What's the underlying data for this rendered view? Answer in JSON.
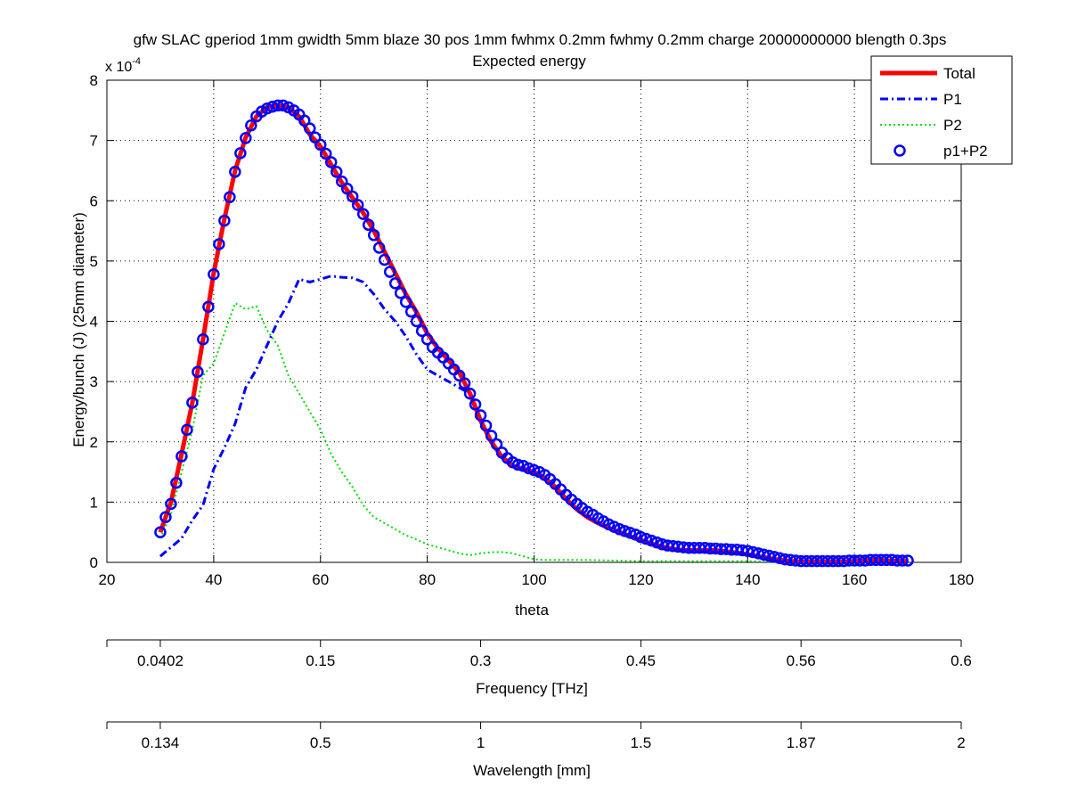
{
  "chart_data": {
    "type": "line",
    "title": "gfw SLAC gperiod 1mm gwidth 5mm blaze 30 pos 1mm fwhmx 0.2mm fwhmy 0.2mm charge 20000000000 blength 0.3ps",
    "subtitle": "Expected energy",
    "xlabel": "theta",
    "ylabel": "Energy/bunch (J) (25mm diameter)",
    "y_exponent_label": "x 10",
    "y_exponent_power": "-4",
    "xlim": [
      20,
      180
    ],
    "ylim": [
      0,
      8
    ],
    "x_ticks": [
      "20",
      "40",
      "60",
      "80",
      "100",
      "120",
      "140",
      "160",
      "180"
    ],
    "y_ticks": [
      "0",
      "1",
      "2",
      "3",
      "4",
      "5",
      "6",
      "7",
      "8"
    ],
    "grid": true,
    "legend_position": "top-right",
    "series": [
      {
        "name": "Total",
        "color": "#ff0000",
        "style": "solid",
        "x": [
          30,
          32,
          34,
          36,
          38,
          40,
          42,
          44,
          46,
          48,
          50,
          52,
          54,
          56,
          58,
          60,
          62,
          64,
          66,
          68,
          70,
          72,
          74,
          76,
          78,
          80,
          82,
          84,
          86,
          88,
          90,
          92,
          94,
          96,
          98,
          100,
          102,
          104,
          106,
          108,
          110,
          112,
          114,
          116,
          118,
          120,
          122,
          124,
          126,
          128,
          130,
          132,
          134,
          136,
          138,
          140,
          142,
          144,
          146,
          148,
          150,
          152,
          154,
          156,
          158,
          160,
          162,
          164,
          166,
          168,
          170
        ],
        "values": [
          0.5,
          1.0,
          1.8,
          2.65,
          3.7,
          4.8,
          5.7,
          6.5,
          7.05,
          7.4,
          7.55,
          7.58,
          7.55,
          7.4,
          7.1,
          6.9,
          6.6,
          6.3,
          6.05,
          5.8,
          5.5,
          5.15,
          4.8,
          4.45,
          4.15,
          3.8,
          3.55,
          3.35,
          3.15,
          2.8,
          2.35,
          2.0,
          1.75,
          1.6,
          1.55,
          1.5,
          1.4,
          1.25,
          1.05,
          0.88,
          0.75,
          0.65,
          0.57,
          0.5,
          0.43,
          0.37,
          0.31,
          0.26,
          0.22,
          0.2,
          0.2,
          0.2,
          0.2,
          0.18,
          0.16,
          0.13,
          0.1,
          0.07,
          0.04,
          0.02,
          0.01,
          0.01,
          0.01,
          0.01,
          0.01,
          0.02,
          0.03,
          0.04,
          0.03,
          0.02,
          0.02
        ]
      },
      {
        "name": "P1",
        "color": "#0000ff",
        "style": "dashdot",
        "x": [
          30,
          32,
          34,
          36,
          38,
          40,
          42,
          44,
          46,
          48,
          50,
          52,
          54,
          56,
          58,
          60,
          62,
          64,
          66,
          68,
          70,
          72,
          74,
          76,
          78,
          80,
          82,
          84,
          86,
          88,
          90,
          92,
          94,
          96,
          98,
          100,
          102,
          104,
          106,
          108,
          110,
          112,
          114,
          116,
          118,
          120,
          122,
          124,
          126,
          128,
          130,
          132,
          134,
          136,
          138,
          140,
          142,
          144,
          146,
          148,
          150,
          152,
          154,
          156,
          158,
          160,
          162,
          164,
          166,
          168,
          170
        ],
        "values": [
          0.1,
          0.25,
          0.4,
          0.7,
          0.95,
          1.55,
          1.9,
          2.3,
          2.9,
          3.2,
          3.6,
          4.0,
          4.3,
          4.7,
          4.65,
          4.7,
          4.75,
          4.73,
          4.72,
          4.65,
          4.45,
          4.2,
          4.0,
          3.75,
          3.45,
          3.2,
          3.1,
          3.0,
          2.9,
          2.8,
          2.35,
          2.0,
          1.75,
          1.6,
          1.55,
          1.5,
          1.4,
          1.25,
          1.05,
          0.88,
          0.75,
          0.65,
          0.57,
          0.5,
          0.43,
          0.37,
          0.31,
          0.26,
          0.22,
          0.2,
          0.2,
          0.2,
          0.2,
          0.18,
          0.16,
          0.13,
          0.1,
          0.07,
          0.04,
          0.02,
          0.01,
          0.01,
          0.01,
          0.01,
          0.01,
          0.02,
          0.03,
          0.04,
          0.03,
          0.02,
          0.02
        ]
      },
      {
        "name": "P2",
        "color": "#00dd00",
        "style": "dotted",
        "x": [
          30,
          32,
          34,
          36,
          38,
          40,
          42,
          44,
          46,
          48,
          50,
          52,
          54,
          56,
          58,
          60,
          62,
          64,
          66,
          68,
          70,
          72,
          74,
          76,
          78,
          80,
          82,
          84,
          86,
          88,
          90,
          92,
          94,
          96,
          98,
          100,
          102,
          104,
          106,
          108,
          110,
          115,
          120,
          125,
          130,
          135,
          140,
          145,
          150,
          155,
          160,
          165,
          170
        ],
        "values": [
          0.4,
          0.8,
          1.5,
          2.2,
          3.1,
          3.3,
          3.8,
          4.3,
          4.2,
          4.25,
          3.85,
          3.6,
          3.1,
          2.8,
          2.5,
          2.2,
          1.8,
          1.5,
          1.25,
          0.95,
          0.75,
          0.65,
          0.55,
          0.45,
          0.38,
          0.3,
          0.25,
          0.2,
          0.15,
          0.12,
          0.15,
          0.17,
          0.17,
          0.15,
          0.1,
          0.05,
          0.04,
          0.04,
          0.04,
          0.04,
          0.04,
          0.03,
          0.02,
          0.02,
          0.02,
          0.02,
          0.02,
          0.01,
          0.0,
          0.0,
          0.0,
          0.0,
          0.0
        ]
      },
      {
        "name": "p1+P2",
        "color": "#0000ff",
        "style": "circles",
        "x": [
          30,
          31,
          32,
          33,
          34,
          35,
          36,
          37,
          38,
          39,
          40,
          41,
          42,
          43,
          44,
          45,
          46,
          47,
          48,
          49,
          50,
          51,
          52,
          53,
          54,
          55,
          56,
          57,
          58,
          59,
          60,
          61,
          62,
          63,
          64,
          65,
          66,
          67,
          68,
          69,
          70,
          71,
          72,
          73,
          74,
          75,
          76,
          77,
          78,
          79,
          80,
          81,
          82,
          83,
          84,
          85,
          86,
          87,
          88,
          89,
          90,
          91,
          92,
          93,
          94,
          95,
          96,
          97,
          98,
          99,
          100,
          101,
          102,
          103,
          104,
          105,
          106,
          107,
          108,
          109,
          110,
          111,
          112,
          113,
          114,
          115,
          116,
          117,
          118,
          119,
          120,
          121,
          122,
          123,
          124,
          125,
          126,
          127,
          128,
          129,
          130,
          131,
          132,
          133,
          134,
          135,
          136,
          137,
          138,
          139,
          140,
          141,
          142,
          143,
          144,
          145,
          146,
          147,
          148,
          149,
          150,
          151,
          152,
          153,
          154,
          155,
          156,
          157,
          158,
          159,
          160,
          161,
          162,
          163,
          164,
          165,
          166,
          167,
          168,
          169,
          170
        ],
        "values": [
          0.5,
          0.75,
          0.97,
          1.32,
          1.76,
          2.2,
          2.65,
          3.16,
          3.7,
          4.24,
          4.78,
          5.28,
          5.67,
          6.06,
          6.48,
          6.79,
          7.04,
          7.25,
          7.4,
          7.48,
          7.53,
          7.56,
          7.58,
          7.58,
          7.55,
          7.5,
          7.43,
          7.33,
          7.2,
          7.05,
          6.93,
          6.78,
          6.64,
          6.48,
          6.32,
          6.2,
          6.07,
          5.93,
          5.78,
          5.6,
          5.43,
          5.22,
          5.02,
          4.82,
          4.63,
          4.47,
          4.32,
          4.16,
          4.0,
          3.84,
          3.7,
          3.57,
          3.48,
          3.4,
          3.3,
          3.2,
          3.1,
          2.97,
          2.8,
          2.62,
          2.44,
          2.27,
          2.1,
          1.96,
          1.82,
          1.73,
          1.66,
          1.62,
          1.6,
          1.56,
          1.53,
          1.5,
          1.45,
          1.38,
          1.3,
          1.21,
          1.12,
          1.04,
          0.97,
          0.9,
          0.84,
          0.79,
          0.73,
          0.68,
          0.63,
          0.59,
          0.55,
          0.52,
          0.49,
          0.46,
          0.42,
          0.39,
          0.36,
          0.33,
          0.3,
          0.28,
          0.27,
          0.26,
          0.25,
          0.24,
          0.24,
          0.24,
          0.24,
          0.23,
          0.23,
          0.22,
          0.22,
          0.21,
          0.21,
          0.2,
          0.19,
          0.17,
          0.15,
          0.13,
          0.11,
          0.09,
          0.07,
          0.05,
          0.04,
          0.03,
          0.02,
          0.02,
          0.02,
          0.02,
          0.02,
          0.02,
          0.02,
          0.02,
          0.02,
          0.03,
          0.03,
          0.03,
          0.03,
          0.04,
          0.04,
          0.04,
          0.04,
          0.04,
          0.03,
          0.03,
          0.03
        ]
      }
    ],
    "secondary_axes": [
      {
        "label": "Frequency [THz]",
        "ticks": [
          {
            "label": "0.0402",
            "theta": 30
          },
          {
            "label": "0.15",
            "theta": 60
          },
          {
            "label": "0.3",
            "theta": 90
          },
          {
            "label": "0.45",
            "theta": 120
          },
          {
            "label": "0.56",
            "theta": 150
          },
          {
            "label": "0.6",
            "theta": 180
          }
        ]
      },
      {
        "label": "Wavelength [mm]",
        "ticks": [
          {
            "label": "0.134",
            "theta": 30
          },
          {
            "label": "0.5",
            "theta": 60
          },
          {
            "label": "1",
            "theta": 90
          },
          {
            "label": "1.5",
            "theta": 120
          },
          {
            "label": "1.87",
            "theta": 150
          },
          {
            "label": "2",
            "theta": 180
          }
        ]
      }
    ]
  }
}
